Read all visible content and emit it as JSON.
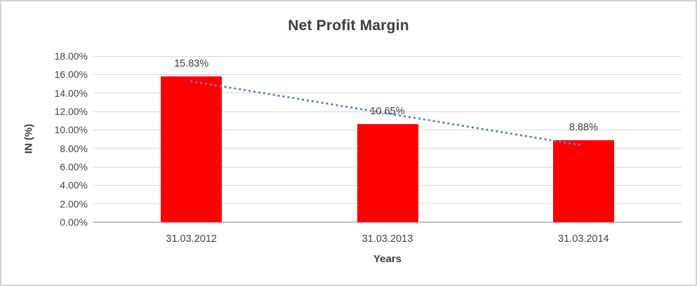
{
  "chart_data": {
    "type": "bar",
    "title": "Net Profit Margin",
    "xlabel": "Years",
    "ylabel": "IN (%)",
    "categories": [
      "31.03.2012",
      "31.03.2013",
      "31.03.2014"
    ],
    "values": [
      15.83,
      10.65,
      8.88
    ],
    "value_labels": [
      "15.83%",
      "10.65%",
      "8.88%"
    ],
    "ylim": [
      0,
      18
    ],
    "ytick_step": 2,
    "ytick_labels": [
      "0.00%",
      "2.00%",
      "4.00%",
      "6.00%",
      "8.00%",
      "10.00%",
      "12.00%",
      "14.00%",
      "16.00%",
      "18.00%"
    ],
    "grid": true,
    "legend": "none",
    "trendline": {
      "type": "linear",
      "style": "dotted",
      "start_value": 15.26,
      "end_value": 8.31,
      "color": "#4E87C6"
    },
    "colors": {
      "bar": "#FF0000",
      "gridline": "#D9D9D9",
      "axis_line": "#BFBFBF",
      "text": "#404040"
    }
  }
}
